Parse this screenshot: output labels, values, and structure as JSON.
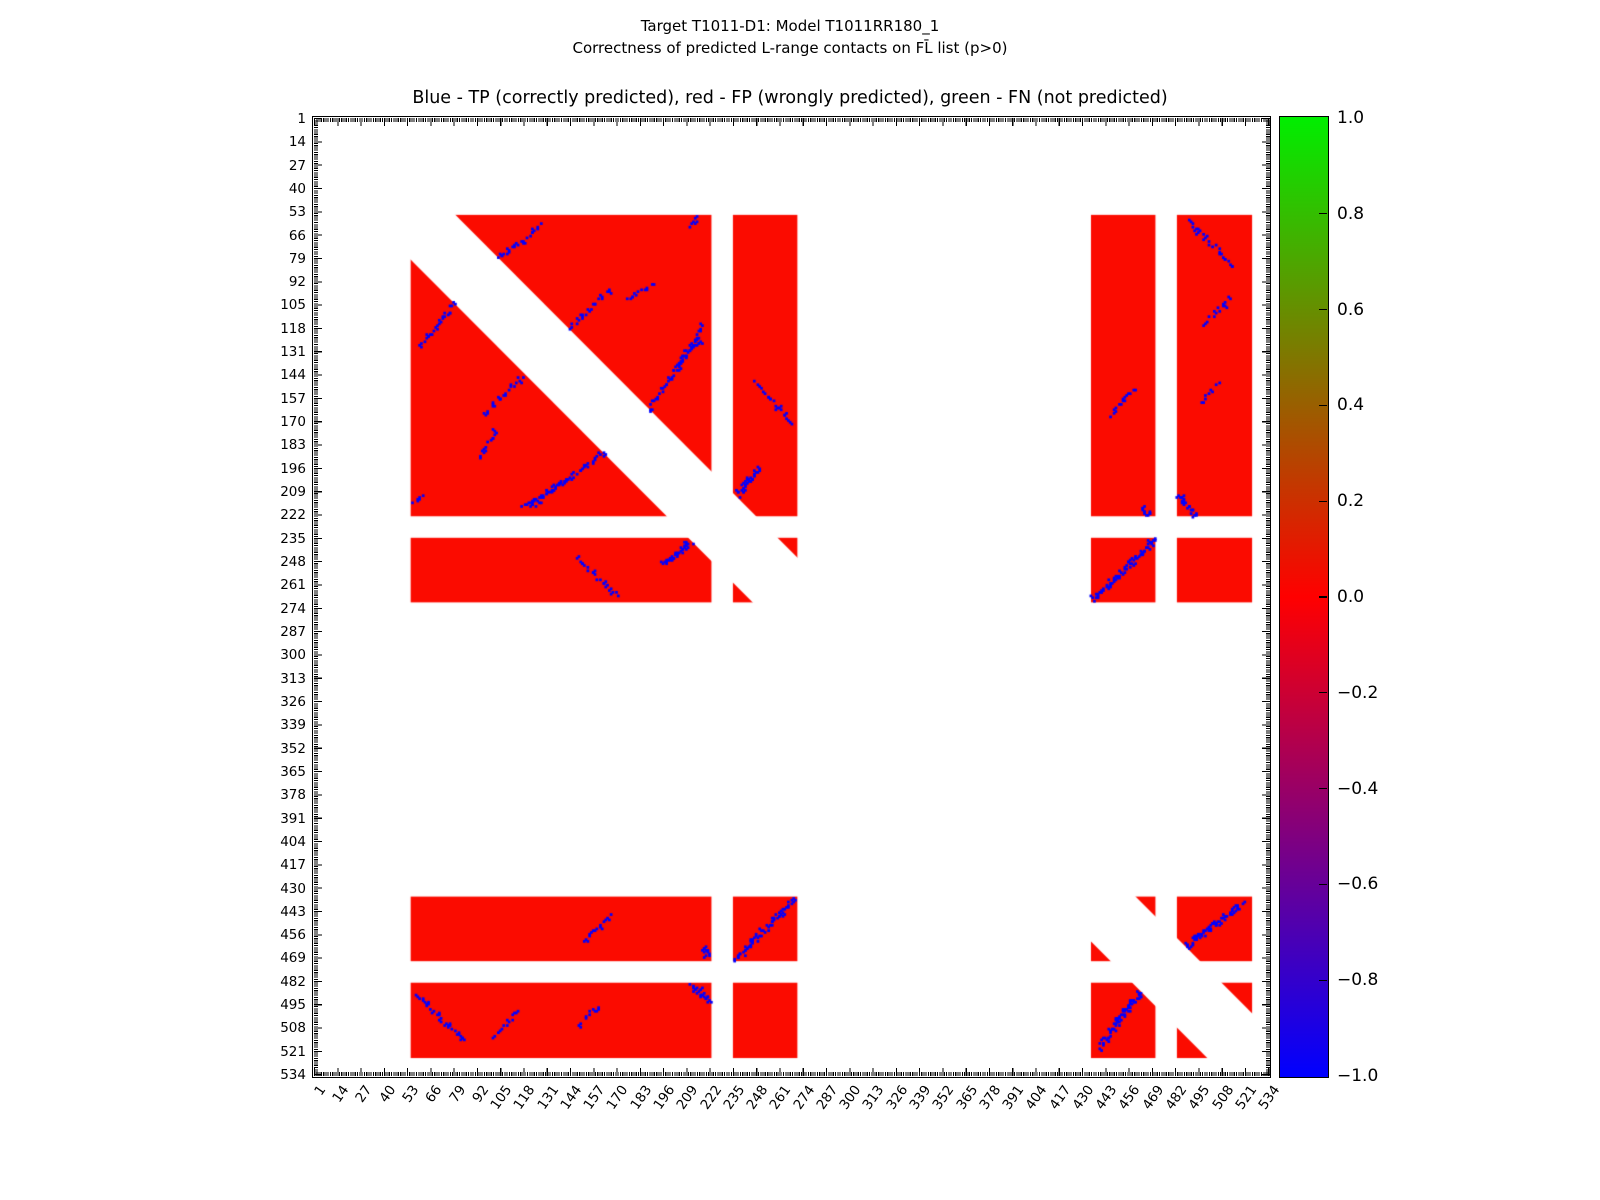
{
  "figure": {
    "title_line1": "Target T1011-D1: Model T1011RR180_1",
    "title_line2": "Correctness of predicted L-range contacts on FL̄ list (p>0)",
    "axes_title": "Blue - TP (correctly predicted), red - FP (wrongly predicted), green - FN (not predicted)"
  },
  "colors": {
    "tp_blue": "#0000ff",
    "fp_red": "#fb0b00",
    "fn_green": "#00ee00",
    "frame_black": "#000000",
    "background": "#ffffff"
  },
  "chart_data": {
    "type": "heatmap",
    "title": "Blue - TP (correctly predicted), red - FP (wrongly predicted), green - FN (not predicted)",
    "suptitle": [
      "Target T1011-D1: Model T1011RR180_1",
      "Correctness of predicted L-range contacts on FL̄ list (p>0)"
    ],
    "x_axis": {
      "min": 1,
      "max": 534,
      "tick_values": [
        1,
        14,
        27,
        40,
        53,
        66,
        79,
        92,
        105,
        118,
        131,
        144,
        157,
        170,
        183,
        196,
        209,
        222,
        235,
        248,
        261,
        274,
        287,
        300,
        313,
        326,
        339,
        352,
        365,
        378,
        391,
        404,
        417,
        430,
        443,
        456,
        469,
        482,
        495,
        508,
        521,
        534
      ],
      "tick_rotation_deg": -55,
      "minor_ticks_every": 1
    },
    "y_axis": {
      "min": 1,
      "max": 534,
      "direction": "top-to-bottom",
      "tick_values": [
        1,
        14,
        27,
        40,
        53,
        66,
        79,
        92,
        105,
        118,
        131,
        144,
        157,
        170,
        183,
        196,
        209,
        222,
        235,
        248,
        261,
        274,
        287,
        300,
        313,
        326,
        339,
        352,
        365,
        378,
        391,
        404,
        417,
        430,
        443,
        456,
        469,
        482,
        495,
        508,
        521,
        534
      ],
      "minor_ticks_every": 1
    },
    "colorbar": {
      "min": -1.0,
      "max": 1.0,
      "tick_labels": [
        "1.0",
        "0.8",
        "0.6",
        "0.4",
        "0.2",
        "0.0",
        "−0.2",
        "−0.4",
        "−0.6",
        "−0.8",
        "−1.0"
      ],
      "tick_values": [
        1.0,
        0.8,
        0.6,
        0.4,
        0.2,
        0.0,
        -0.2,
        -0.4,
        -0.6,
        -0.8,
        -1.0
      ],
      "colormap": "brg (blue at -1, red at 0, green at +1)",
      "position": "right"
    },
    "legend_meaning": {
      "blue": "TP (correctly predicted)",
      "red": "FP (wrongly predicted)",
      "green": "FN (not predicted)"
    },
    "fp_predicted_residue_blocks": [
      [
        55,
        222
      ],
      [
        235,
        270
      ],
      [
        435,
        470
      ],
      [
        483,
        524
      ]
    ],
    "fp_block_rule": "red fills every pairwise combination of the residue blocks on both axes (symmetric matrix)",
    "diagonal_exclusion_halfwidth_residues": 25,
    "tp_traces": [
      {
        "from": [
          60,
          128
        ],
        "to": [
          79,
          104
        ],
        "dense": false
      },
      {
        "from": [
          96,
          166
        ],
        "to": [
          117,
          144
        ],
        "dense": false
      },
      {
        "from": [
          93,
          190
        ],
        "to": [
          102,
          176
        ],
        "dense": false
      },
      {
        "from": [
          117,
          218
        ],
        "to": [
          163,
          188
        ],
        "dense": false
      },
      {
        "from": [
          124,
          216
        ],
        "to": [
          140,
          203
        ],
        "dense": false
      },
      {
        "from": [
          57,
          215
        ],
        "to": [
          61,
          211
        ],
        "dense": true
      },
      {
        "from": [
          148,
          247
        ],
        "to": [
          170,
          267
        ],
        "dense": false
      },
      {
        "from": [
          196,
          249
        ],
        "to": [
          211,
          237
        ],
        "dense": true
      },
      {
        "from": [
          236,
          470
        ],
        "to": [
          269,
          436
        ],
        "dense": true
      },
      {
        "from": [
          57,
          489
        ],
        "to": [
          84,
          514
        ],
        "dense": false
      },
      {
        "from": [
          102,
          512
        ],
        "to": [
          114,
          499
        ],
        "dense": false
      },
      {
        "from": [
          149,
          505
        ],
        "to": [
          160,
          496
        ],
        "dense": false
      },
      {
        "from": [
          211,
          484
        ],
        "to": [
          222,
          494
        ],
        "dense": true
      },
      {
        "from": [
          151,
          459
        ],
        "to": [
          166,
          445
        ],
        "dense": false
      },
      {
        "from": [
          218,
          463
        ],
        "to": [
          222,
          468
        ],
        "dense": true
      },
      {
        "from": [
          439,
          518
        ],
        "to": [
          463,
          487
        ],
        "dense": true
      }
    ],
    "tp_traces_note": "each trace is rendered at (i,j) and mirrored at (j,i)"
  }
}
